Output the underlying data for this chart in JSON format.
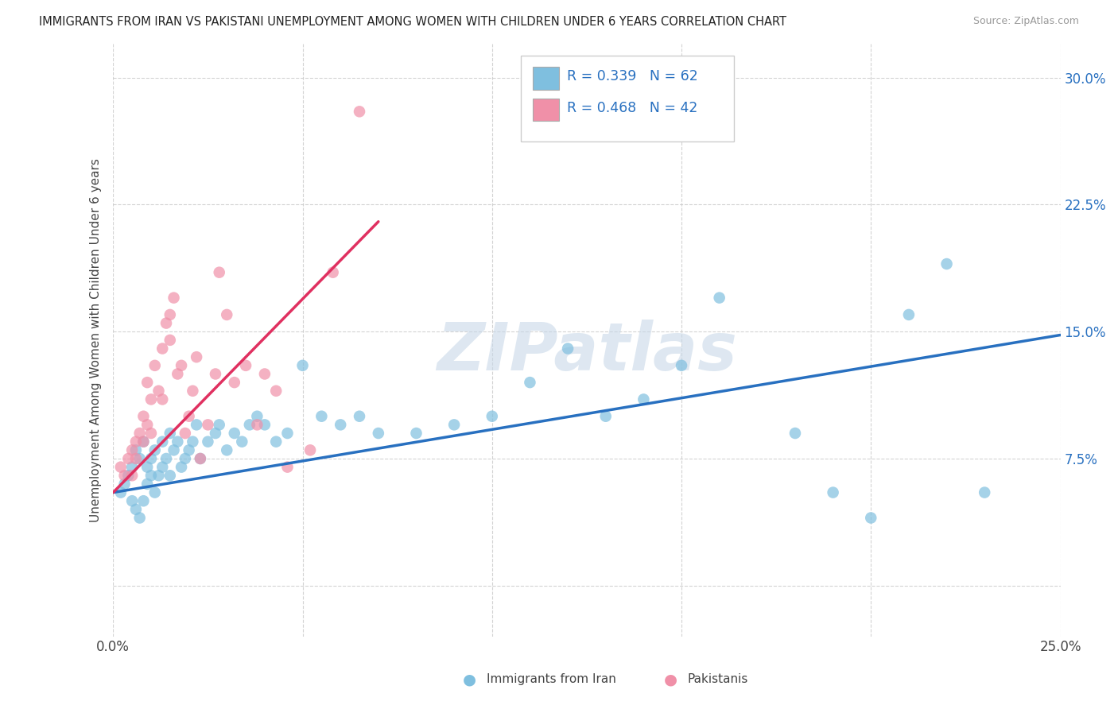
{
  "title": "IMMIGRANTS FROM IRAN VS PAKISTANI UNEMPLOYMENT AMONG WOMEN WITH CHILDREN UNDER 6 YEARS CORRELATION CHART",
  "source": "Source: ZipAtlas.com",
  "ylabel": "Unemployment Among Women with Children Under 6 years",
  "legend_label1": "Immigrants from Iran",
  "legend_label2": "Pakistanis",
  "R1": "0.339",
  "N1": "62",
  "R2": "0.468",
  "N2": "42",
  "color1": "#7fbfdf",
  "color2": "#f090a8",
  "line_color1": "#2870c0",
  "line_color2": "#e03060",
  "watermark": "ZIPatlas",
  "xmin": 0.0,
  "xmax": 0.25,
  "ymin": -0.03,
  "ymax": 0.32,
  "iran_x": [
    0.002,
    0.003,
    0.004,
    0.005,
    0.005,
    0.006,
    0.006,
    0.007,
    0.007,
    0.008,
    0.008,
    0.009,
    0.009,
    0.01,
    0.01,
    0.011,
    0.011,
    0.012,
    0.013,
    0.013,
    0.014,
    0.015,
    0.015,
    0.016,
    0.017,
    0.018,
    0.019,
    0.02,
    0.021,
    0.022,
    0.023,
    0.025,
    0.027,
    0.028,
    0.03,
    0.032,
    0.034,
    0.036,
    0.038,
    0.04,
    0.043,
    0.046,
    0.05,
    0.055,
    0.06,
    0.065,
    0.07,
    0.08,
    0.09,
    0.1,
    0.11,
    0.12,
    0.13,
    0.14,
    0.15,
    0.16,
    0.18,
    0.19,
    0.2,
    0.21,
    0.22,
    0.23
  ],
  "iran_y": [
    0.055,
    0.06,
    0.065,
    0.07,
    0.05,
    0.08,
    0.045,
    0.075,
    0.04,
    0.085,
    0.05,
    0.07,
    0.06,
    0.075,
    0.065,
    0.08,
    0.055,
    0.065,
    0.085,
    0.07,
    0.075,
    0.09,
    0.065,
    0.08,
    0.085,
    0.07,
    0.075,
    0.08,
    0.085,
    0.095,
    0.075,
    0.085,
    0.09,
    0.095,
    0.08,
    0.09,
    0.085,
    0.095,
    0.1,
    0.095,
    0.085,
    0.09,
    0.13,
    0.1,
    0.095,
    0.1,
    0.09,
    0.09,
    0.095,
    0.1,
    0.12,
    0.14,
    0.1,
    0.11,
    0.13,
    0.17,
    0.09,
    0.055,
    0.04,
    0.16,
    0.19,
    0.055
  ],
  "pak_x": [
    0.002,
    0.003,
    0.004,
    0.005,
    0.005,
    0.006,
    0.006,
    0.007,
    0.008,
    0.008,
    0.009,
    0.009,
    0.01,
    0.01,
    0.011,
    0.012,
    0.013,
    0.013,
    0.014,
    0.015,
    0.015,
    0.016,
    0.017,
    0.018,
    0.019,
    0.02,
    0.021,
    0.022,
    0.023,
    0.025,
    0.027,
    0.028,
    0.03,
    0.032,
    0.035,
    0.038,
    0.04,
    0.043,
    0.046,
    0.052,
    0.058,
    0.065
  ],
  "pak_y": [
    0.07,
    0.065,
    0.075,
    0.08,
    0.065,
    0.085,
    0.075,
    0.09,
    0.1,
    0.085,
    0.095,
    0.12,
    0.11,
    0.09,
    0.13,
    0.115,
    0.14,
    0.11,
    0.155,
    0.145,
    0.16,
    0.17,
    0.125,
    0.13,
    0.09,
    0.1,
    0.115,
    0.135,
    0.075,
    0.095,
    0.125,
    0.185,
    0.16,
    0.12,
    0.13,
    0.095,
    0.125,
    0.115,
    0.07,
    0.08,
    0.185,
    0.28
  ],
  "iran_line_x": [
    0.0,
    0.25
  ],
  "iran_line_y_start": 0.055,
  "iran_line_y_end": 0.148,
  "pak_line_x": [
    0.0,
    0.07
  ],
  "pak_line_y_start": 0.055,
  "pak_line_y_end": 0.215
}
